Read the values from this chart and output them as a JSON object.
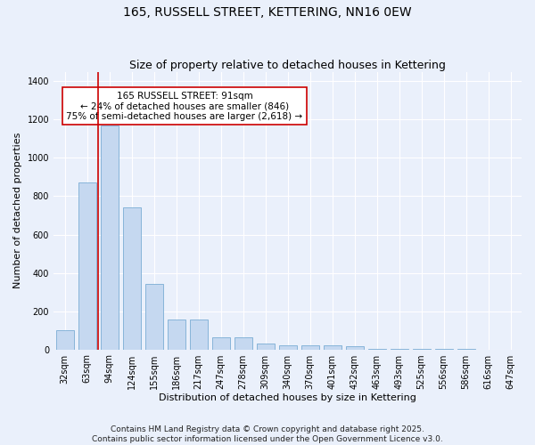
{
  "title": "165, RUSSELL STREET, KETTERING, NN16 0EW",
  "subtitle": "Size of property relative to detached houses in Kettering",
  "xlabel": "Distribution of detached houses by size in Kettering",
  "ylabel": "Number of detached properties",
  "categories": [
    "32sqm",
    "63sqm",
    "94sqm",
    "124sqm",
    "155sqm",
    "186sqm",
    "217sqm",
    "247sqm",
    "278sqm",
    "309sqm",
    "340sqm",
    "370sqm",
    "401sqm",
    "432sqm",
    "463sqm",
    "493sqm",
    "525sqm",
    "556sqm",
    "586sqm",
    "616sqm",
    "647sqm"
  ],
  "values": [
    100,
    870,
    1170,
    740,
    340,
    155,
    155,
    65,
    65,
    30,
    22,
    22,
    22,
    15,
    5,
    3,
    2,
    1,
    1,
    0,
    0
  ],
  "bar_color": "#c5d8f0",
  "bar_edge_color": "#7aadd4",
  "bar_width": 0.8,
  "vline_x": 1.5,
  "vline_color": "#cc0000",
  "annotation_text": "165 RUSSELL STREET: 91sqm\n← 24% of detached houses are smaller (846)\n75% of semi-detached houses are larger (2,618) →",
  "annotation_box_color": "#ffffff",
  "annotation_box_edge": "#cc0000",
  "ylim": [
    0,
    1450
  ],
  "yticks": [
    0,
    200,
    400,
    600,
    800,
    1000,
    1200,
    1400
  ],
  "background_color": "#eaf0fb",
  "grid_color": "#ffffff",
  "footer": "Contains HM Land Registry data © Crown copyright and database right 2025.\nContains public sector information licensed under the Open Government Licence v3.0.",
  "title_fontsize": 10,
  "subtitle_fontsize": 9,
  "label_fontsize": 8,
  "tick_fontsize": 7,
  "footer_fontsize": 6.5,
  "annotation_fontsize": 7.5
}
